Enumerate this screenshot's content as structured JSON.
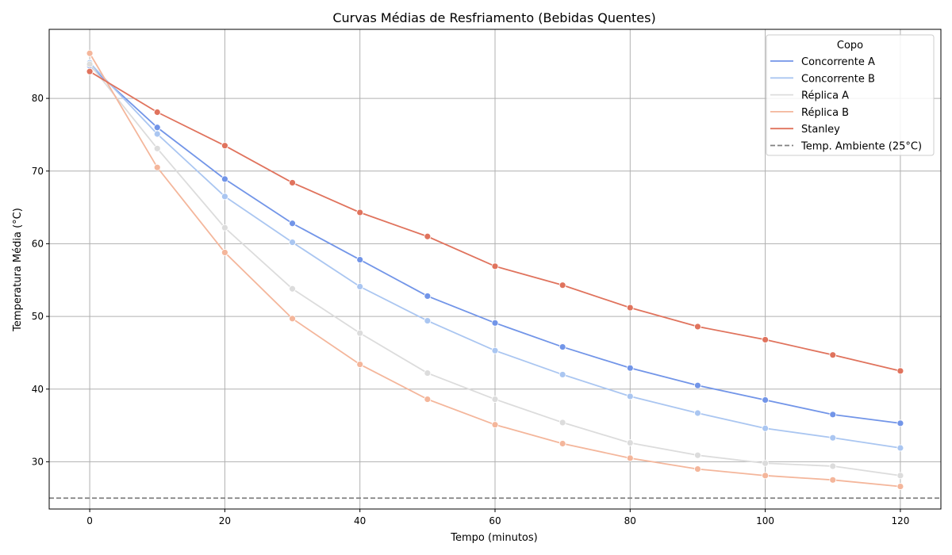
{
  "chart_data": {
    "type": "line",
    "title": "Curvas Médias de Resfriamento (Bebidas Quentes)",
    "xlabel": "Tempo (minutos)",
    "ylabel": "Temperatura Média (°C)",
    "xlim": [
      -6,
      126
    ],
    "ylim": [
      23.5,
      89.5
    ],
    "xticks": [
      0,
      20,
      40,
      60,
      80,
      100,
      120
    ],
    "yticks": [
      30,
      40,
      50,
      60,
      70,
      80
    ],
    "grid": true,
    "legend_title": "Copo",
    "legend_position": "top-right",
    "x": [
      0,
      10,
      20,
      30,
      40,
      50,
      60,
      70,
      80,
      90,
      100,
      110,
      120
    ],
    "series": [
      {
        "name": "Concorrente A",
        "color": "#7295e8",
        "values": [
          84.5,
          76.0,
          68.9,
          62.8,
          57.8,
          52.8,
          49.1,
          45.8,
          42.9,
          40.5,
          38.5,
          36.5,
          35.3
        ]
      },
      {
        "name": "Concorrente B",
        "color": "#aac6f1",
        "values": [
          84.9,
          75.1,
          66.5,
          60.2,
          54.1,
          49.4,
          45.3,
          42.0,
          39.0,
          36.7,
          34.6,
          33.3,
          31.9
        ]
      },
      {
        "name": "Réplica A",
        "color": "#dcdcdc",
        "values": [
          84.7,
          73.1,
          62.2,
          53.8,
          47.7,
          42.2,
          38.6,
          35.4,
          32.6,
          30.9,
          29.8,
          29.4,
          28.1
        ]
      },
      {
        "name": "Réplica B",
        "color": "#f4b69b",
        "values": [
          86.2,
          70.5,
          58.8,
          49.7,
          43.4,
          38.6,
          35.1,
          32.5,
          30.5,
          29.0,
          28.1,
          27.5,
          26.6
        ]
      },
      {
        "name": "Stanley",
        "color": "#e0735d",
        "values": [
          83.7,
          78.1,
          73.5,
          68.4,
          64.3,
          61.0,
          56.9,
          54.3,
          51.2,
          48.6,
          46.8,
          44.7,
          42.5
        ]
      }
    ],
    "reference_line": {
      "name": "Temp. Ambiente (25°C)",
      "value": 25,
      "color": "#808080"
    }
  }
}
